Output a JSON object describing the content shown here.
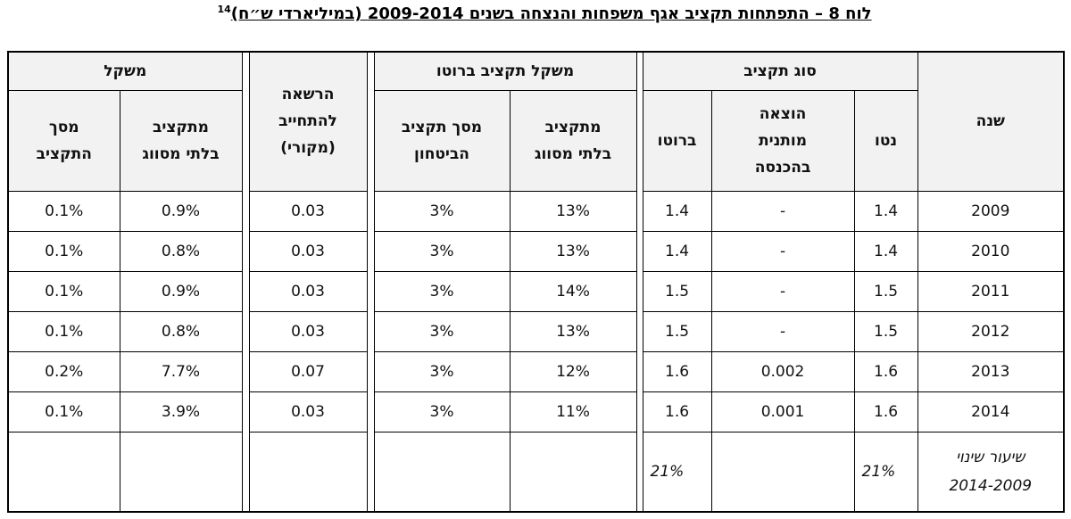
{
  "title": {
    "text": "לוח 8 – התפתחות תקציב אגף משפחות והנצחה בשנים 2009-2014 (במיליארדי ש״ח)",
    "footnote": "14"
  },
  "table": {
    "header": {
      "year": "שנה",
      "budget_type": "סוג תקציב",
      "net": "נטו",
      "conditional": "הוצאה\nמותנית\nבהכנסה",
      "gross": "ברוטו",
      "gross_weight": "משקל תקציב ברוטו",
      "of_unclassified": "מתקציב\nבלתי מסווג",
      "of_defense": "מסך תקציב\nהביטחון",
      "commitment": "הרשאה\nלהתחייב\n(מקורי)",
      "weight": "משקל",
      "w_unclassified": "מתקציב\nבלתי מסווג",
      "w_total": "מסך\nהתקציב"
    },
    "rows": [
      [
        "2009",
        "1.4",
        "-",
        "1.4",
        "13%",
        "3%",
        "0.03",
        "0.9%",
        "0.1%"
      ],
      [
        "2010",
        "1.4",
        "-",
        "1.4",
        "13%",
        "3%",
        "0.03",
        "0.8%",
        "0.1%"
      ],
      [
        "2011",
        "1.5",
        "-",
        "1.5",
        "14%",
        "3%",
        "0.03",
        "0.9%",
        "0.1%"
      ],
      [
        "2012",
        "1.5",
        "-",
        "1.5",
        "13%",
        "3%",
        "0.03",
        "0.8%",
        "0.1%"
      ],
      [
        "2013",
        "1.6",
        "0.002",
        "1.6",
        "12%",
        "3%",
        "0.07",
        "7.7%",
        "0.2%"
      ],
      [
        "2014",
        "1.6",
        "0.001",
        "1.6",
        "11%",
        "3%",
        "0.03",
        "3.9%",
        "0.1%"
      ]
    ],
    "change": {
      "label": "שיעור שינוי\n2014-2009",
      "net": "21%",
      "gross": "21%"
    }
  }
}
